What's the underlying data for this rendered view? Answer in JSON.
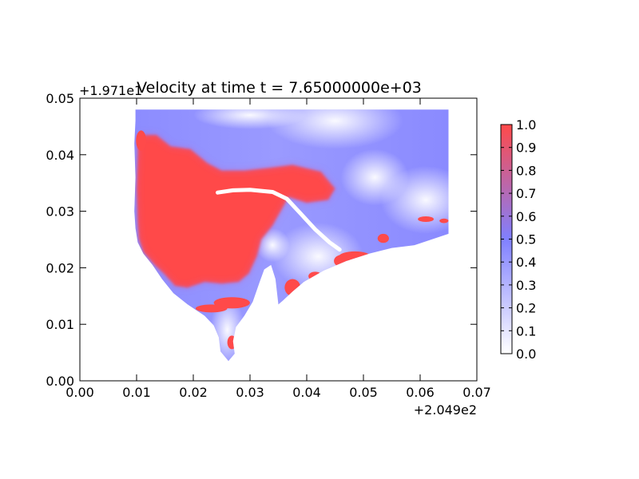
{
  "chart_data": {
    "type": "heatmap",
    "title": "Velocity at time t = 7.65000000e+03",
    "xlabel": "",
    "ylabel": "",
    "x_offset_label": "+2.049e2",
    "y_offset_label": "+1.971e1",
    "xlim": [
      0.0,
      0.07
    ],
    "ylim": [
      0.0,
      0.05
    ],
    "x_ticks": [
      0.0,
      0.01,
      0.02,
      0.03,
      0.04,
      0.05,
      0.06,
      0.07
    ],
    "x_tick_labels": [
      "0.00",
      "0.01",
      "0.02",
      "0.03",
      "0.04",
      "0.05",
      "0.06",
      "0.07"
    ],
    "y_ticks": [
      0.0,
      0.01,
      0.02,
      0.03,
      0.04,
      0.05
    ],
    "y_tick_labels": [
      "0.00",
      "0.01",
      "0.02",
      "0.03",
      "0.04",
      "0.05"
    ],
    "grid": false,
    "colorbar": {
      "range": [
        0.0,
        1.0
      ],
      "ticks": [
        0.0,
        0.1,
        0.2,
        0.3,
        0.4,
        0.5,
        0.6,
        0.7,
        0.8,
        0.9,
        1.0
      ],
      "tick_labels": [
        "0.0",
        "0.1",
        "0.2",
        "0.3",
        "0.4",
        "0.5",
        "0.6",
        "0.7",
        "0.8",
        "0.9",
        "1.0"
      ],
      "colors": [
        "#ffffff",
        "#8080ff",
        "#ff4a4a"
      ]
    },
    "field": {
      "domain_outline": [
        [
          0.0098,
          0.048
        ],
        [
          0.065,
          0.048
        ],
        [
          0.065,
          0.026
        ],
        [
          0.062,
          0.025
        ],
        [
          0.059,
          0.024
        ],
        [
          0.055,
          0.0235
        ],
        [
          0.051,
          0.0225
        ],
        [
          0.047,
          0.0212
        ],
        [
          0.043,
          0.0195
        ],
        [
          0.0395,
          0.0175
        ],
        [
          0.0375,
          0.0158
        ],
        [
          0.0358,
          0.0142
        ],
        [
          0.035,
          0.0135
        ],
        [
          0.0345,
          0.018
        ],
        [
          0.0337,
          0.0205
        ],
        [
          0.0325,
          0.0197
        ],
        [
          0.0317,
          0.0175
        ],
        [
          0.0305,
          0.014
        ],
        [
          0.029,
          0.0115
        ],
        [
          0.0275,
          0.0095
        ],
        [
          0.027,
          0.007
        ],
        [
          0.0273,
          0.0048
        ],
        [
          0.0262,
          0.0035
        ],
        [
          0.0248,
          0.0052
        ],
        [
          0.0245,
          0.0077
        ],
        [
          0.0236,
          0.0098
        ],
        [
          0.022,
          0.0115
        ],
        [
          0.019,
          0.0135
        ],
        [
          0.0165,
          0.0155
        ],
        [
          0.0145,
          0.018
        ],
        [
          0.0128,
          0.0205
        ],
        [
          0.0112,
          0.0225
        ],
        [
          0.0102,
          0.0245
        ],
        [
          0.0098,
          0.027
        ],
        [
          0.0096,
          0.03
        ],
        [
          0.0098,
          0.036
        ],
        [
          0.0096,
          0.042
        ],
        [
          0.0098,
          0.046
        ]
      ],
      "high_velocity_region": [
        [
          0.0102,
          0.0435
        ],
        [
          0.0135,
          0.0435
        ],
        [
          0.016,
          0.0415
        ],
        [
          0.0195,
          0.041
        ],
        [
          0.0225,
          0.0385
        ],
        [
          0.025,
          0.0372
        ],
        [
          0.029,
          0.0372
        ],
        [
          0.0335,
          0.0377
        ],
        [
          0.0375,
          0.0382
        ],
        [
          0.0425,
          0.037
        ],
        [
          0.045,
          0.034
        ],
        [
          0.0438,
          0.032
        ],
        [
          0.04,
          0.0315
        ],
        [
          0.0368,
          0.0325
        ],
        [
          0.034,
          0.0275
        ],
        [
          0.032,
          0.025
        ],
        [
          0.0312,
          0.022
        ],
        [
          0.0298,
          0.019
        ],
        [
          0.028,
          0.0175
        ],
        [
          0.025,
          0.0172
        ],
        [
          0.022,
          0.0175
        ],
        [
          0.019,
          0.0165
        ],
        [
          0.0168,
          0.0168
        ],
        [
          0.0148,
          0.019
        ],
        [
          0.0132,
          0.0205
        ],
        [
          0.0112,
          0.0228
        ],
        [
          0.0104,
          0.0252
        ],
        [
          0.0102,
          0.028
        ],
        [
          0.01,
          0.034
        ],
        [
          0.0102,
          0.04
        ]
      ],
      "dry_channel": [
        [
          0.0243,
          0.0333
        ],
        [
          0.027,
          0.0337
        ],
        [
          0.03,
          0.0338
        ],
        [
          0.034,
          0.0334
        ],
        [
          0.0365,
          0.0322
        ],
        [
          0.039,
          0.0295
        ],
        [
          0.0415,
          0.0268
        ],
        [
          0.044,
          0.0245
        ],
        [
          0.0458,
          0.0232
        ]
      ],
      "hot_patches": [
        {
          "center": [
            0.0375,
            0.0165
          ],
          "radius": [
            0.0014,
            0.0015
          ]
        },
        {
          "center": [
            0.0268,
            0.0138
          ],
          "radius": [
            0.0032,
            0.001
          ]
        },
        {
          "center": [
            0.0232,
            0.0128
          ],
          "radius": [
            0.0028,
            0.0007
          ]
        },
        {
          "center": [
            0.0268,
            0.0068
          ],
          "radius": [
            0.0008,
            0.0012
          ]
        },
        {
          "center": [
            0.0462,
            0.0212
          ],
          "radius": [
            0.0014,
            0.0011
          ]
        },
        {
          "center": [
            0.0485,
            0.022
          ],
          "radius": [
            0.0028,
            0.0009
          ]
        },
        {
          "center": [
            0.0535,
            0.0252
          ],
          "radius": [
            0.001,
            0.0008
          ]
        },
        {
          "center": [
            0.061,
            0.0286
          ],
          "radius": [
            0.0014,
            0.0005
          ]
        },
        {
          "center": [
            0.0642,
            0.0283
          ],
          "radius": [
            0.0008,
            0.0004
          ]
        },
        {
          "center": [
            0.0108,
            0.0425
          ],
          "radius": [
            0.0009,
            0.0018
          ]
        },
        {
          "center": [
            0.0415,
            0.0185
          ],
          "radius": [
            0.0012,
            0.0008
          ]
        }
      ]
    }
  }
}
